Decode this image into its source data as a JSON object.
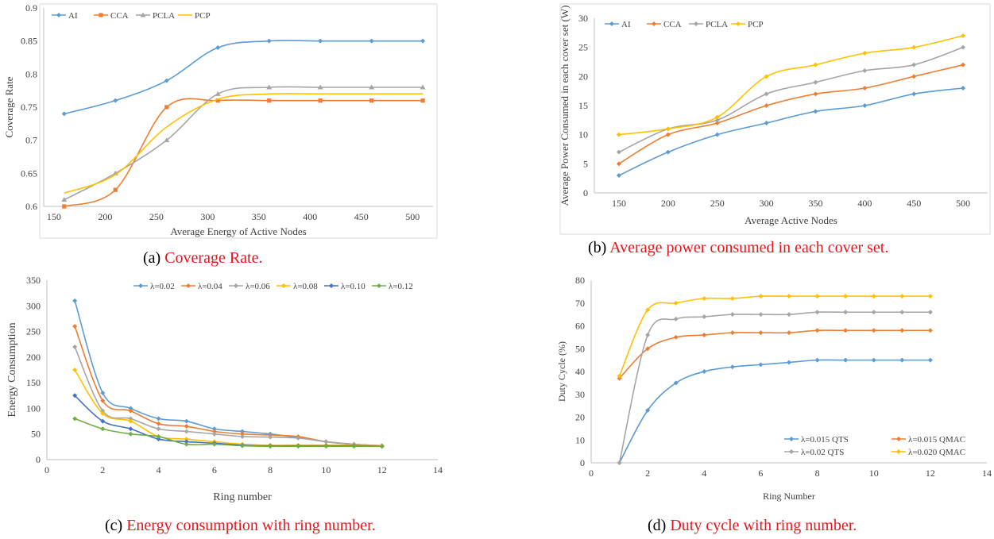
{
  "captions": {
    "a": {
      "prefix": "(a) ",
      "text": "Coverage Rate."
    },
    "b": {
      "prefix": "(b) ",
      "text": "Average power consumed in each cover set."
    },
    "c": {
      "prefix": "(c) ",
      "text": "Energy consumption with ring number."
    },
    "d": {
      "prefix": "(d) ",
      "text": "Duty cycle with ring number."
    }
  },
  "colors": {
    "blue": "#5b9bd5",
    "orange": "#ed7d31",
    "gray": "#a5a5a5",
    "yellow": "#ffc000",
    "darkblue": "#4472c4",
    "green": "#70ad47"
  },
  "chart_data": [
    {
      "type": "line",
      "title": "",
      "xlabel": "Average Energy of Active Nodes",
      "ylabel": "Coverage Rate",
      "xlim": [
        140,
        520
      ],
      "ylim": [
        0.6,
        0.9
      ],
      "xticks": [
        150,
        200,
        250,
        300,
        350,
        400,
        450,
        500
      ],
      "yticks": [
        0.6,
        0.65,
        0.7,
        0.75,
        0.8,
        0.85,
        0.9
      ],
      "ytick_labels": [
        "0.6",
        "0.65",
        "0.7",
        "0.75",
        "0.8",
        "0.85",
        "0.9"
      ],
      "legend": "top-left",
      "framed": true,
      "x": [
        160,
        210,
        260,
        310,
        360,
        410,
        460,
        510
      ],
      "series": [
        {
          "name": "AI",
          "color": "#5b9bd5",
          "marker": "diamond",
          "values": [
            0.74,
            0.76,
            0.79,
            0.84,
            0.85,
            0.85,
            0.85,
            0.85
          ]
        },
        {
          "name": "CCA",
          "color": "#ed7d31",
          "marker": "square",
          "values": [
            0.6,
            0.625,
            0.75,
            0.76,
            0.76,
            0.76,
            0.76,
            0.76
          ]
        },
        {
          "name": "PCLA",
          "color": "#a5a5a5",
          "marker": "triangle",
          "values": [
            0.61,
            0.65,
            0.7,
            0.77,
            0.78,
            0.78,
            0.78,
            0.78
          ]
        },
        {
          "name": "PCP",
          "color": "#ffc000",
          "marker": "none",
          "values": [
            0.62,
            0.648,
            0.72,
            0.762,
            0.77,
            0.77,
            0.77,
            0.77
          ]
        }
      ]
    },
    {
      "type": "line",
      "title": "",
      "xlabel": "Average Active Nodes",
      "ylabel": "Average Power Consumed in each cover set (W)",
      "xlim": [
        125,
        525
      ],
      "ylim": [
        0,
        30
      ],
      "xticks": [
        150,
        200,
        250,
        300,
        350,
        400,
        450,
        500
      ],
      "yticks": [
        0,
        5,
        10,
        15,
        20,
        25,
        30
      ],
      "ytick_labels": [
        "0",
        "5",
        "10",
        "15",
        "20",
        "25",
        "30"
      ],
      "legend": "top-left",
      "framed": true,
      "x": [
        150,
        200,
        250,
        300,
        350,
        400,
        450,
        500
      ],
      "series": [
        {
          "name": "AI",
          "color": "#5b9bd5",
          "marker": "diamond",
          "values": [
            3,
            7,
            10,
            12,
            14,
            15,
            17,
            18
          ]
        },
        {
          "name": "CCA",
          "color": "#ed7d31",
          "marker": "diamond",
          "values": [
            5,
            10,
            12,
            15,
            17,
            18,
            20,
            22
          ]
        },
        {
          "name": "PCLA",
          "color": "#a5a5a5",
          "marker": "diamond",
          "values": [
            7,
            11,
            12.5,
            17,
            19,
            21,
            22,
            25
          ]
        },
        {
          "name": "PCP",
          "color": "#ffc000",
          "marker": "diamond",
          "values": [
            10,
            11,
            13,
            20,
            22,
            24,
            25,
            27
          ]
        }
      ]
    },
    {
      "type": "line",
      "title": "",
      "xlabel": "Ring number",
      "ylabel": "Energy Consumption",
      "xlim": [
        0,
        14
      ],
      "ylim": [
        0,
        350
      ],
      "xticks": [
        0,
        2,
        4,
        6,
        8,
        10,
        12,
        14
      ],
      "yticks": [
        0,
        50,
        100,
        150,
        200,
        250,
        300,
        350
      ],
      "ytick_labels": [
        "0",
        "50",
        "100",
        "150",
        "200",
        "250",
        "300",
        "350"
      ],
      "legend": "top",
      "framed": false,
      "x": [
        1,
        2,
        3,
        4,
        5,
        6,
        7,
        8,
        9,
        10,
        11,
        12
      ],
      "series": [
        {
          "name": "λ=0.02",
          "color": "#5b9bd5",
          "marker": "diamond",
          "values": [
            310,
            130,
            100,
            80,
            75,
            60,
            55,
            50,
            43,
            35,
            30,
            27
          ]
        },
        {
          "name": "λ=0.04",
          "color": "#ed7d31",
          "marker": "diamond",
          "values": [
            260,
            115,
            95,
            70,
            65,
            55,
            50,
            48,
            45,
            35,
            30,
            27
          ]
        },
        {
          "name": "λ=0.06",
          "color": "#a5a5a5",
          "marker": "diamond",
          "values": [
            220,
            95,
            80,
            60,
            55,
            50,
            45,
            44,
            42,
            35,
            30,
            26
          ]
        },
        {
          "name": "λ=0.08",
          "color": "#ffc000",
          "marker": "diamond",
          "values": [
            175,
            90,
            75,
            45,
            40,
            35,
            30,
            28,
            28,
            28,
            28,
            26
          ]
        },
        {
          "name": "λ=0.10",
          "color": "#4472c4",
          "marker": "diamond",
          "values": [
            125,
            75,
            60,
            40,
            35,
            32,
            28,
            27,
            27,
            27,
            27,
            26
          ]
        },
        {
          "name": "λ=0.12",
          "color": "#70ad47",
          "marker": "diamond",
          "values": [
            80,
            60,
            50,
            45,
            30,
            30,
            27,
            26,
            26,
            26,
            26,
            26
          ]
        }
      ]
    },
    {
      "type": "line",
      "title": "",
      "xlabel": "Ring Number",
      "ylabel": "Duty Cycle (%)",
      "xlim": [
        0,
        14
      ],
      "ylim": [
        0,
        80
      ],
      "xticks": [
        0,
        2,
        4,
        6,
        8,
        10,
        12,
        14
      ],
      "yticks": [
        0,
        10,
        20,
        30,
        40,
        50,
        60,
        70,
        80
      ],
      "ytick_labels": [
        "0",
        "10",
        "20",
        "30",
        "40",
        "50",
        "60",
        "70",
        "80"
      ],
      "legend": "bottom-right",
      "framed": false,
      "x": [
        1,
        2,
        3,
        4,
        5,
        6,
        7,
        8,
        9,
        10,
        11,
        12
      ],
      "series": [
        {
          "name": "λ=0.015 QTS",
          "color": "#5b9bd5",
          "marker": "diamond",
          "values": [
            0,
            23,
            35,
            40,
            42,
            43,
            44,
            45,
            45,
            45,
            45,
            45
          ]
        },
        {
          "name": "λ=0.015 QMAC",
          "color": "#ed7d31",
          "marker": "diamond",
          "values": [
            37,
            50,
            55,
            56,
            57,
            57,
            57,
            58,
            58,
            58,
            58,
            58
          ]
        },
        {
          "name": "λ=0.02 QTS",
          "color": "#a5a5a5",
          "marker": "diamond",
          "values": [
            0,
            56,
            63,
            64,
            65,
            65,
            65,
            66,
            66,
            66,
            66,
            66
          ]
        },
        {
          "name": "λ=0.020 QMAC",
          "color": "#ffc000",
          "marker": "diamond",
          "values": [
            38,
            67,
            70,
            72,
            72,
            73,
            73,
            73,
            73,
            73,
            73,
            73
          ]
        }
      ]
    }
  ]
}
